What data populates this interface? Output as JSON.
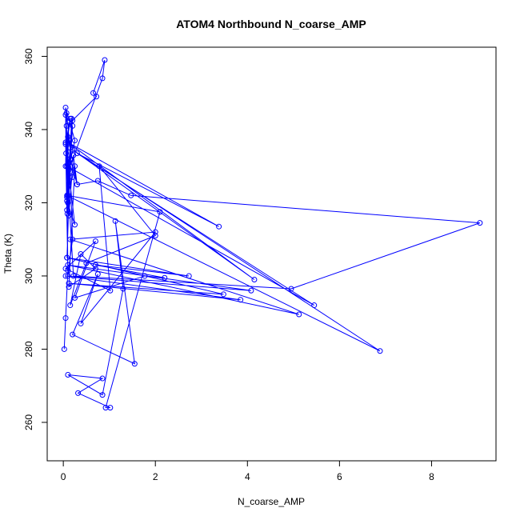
{
  "chart_data": {
    "type": "line",
    "title": "ATOM4 Northbound N_coarse_AMP",
    "xlabel": "N_coarse_AMP",
    "ylabel": "Theta (K)",
    "xlim": [
      -0.35,
      9.4
    ],
    "ylim": [
      249.5,
      362.5
    ],
    "xticks": [
      0,
      2,
      4,
      6,
      8
    ],
    "yticks": [
      260,
      280,
      300,
      320,
      340,
      360
    ],
    "grid": false,
    "legend": "none",
    "marker": "open-circle",
    "series_color": "#0000ff",
    "series": [
      {
        "x": [
          0.02,
          0.05,
          0.1,
          0.08,
          0.12,
          0.05,
          0.07,
          0.15,
          0.2,
          0.09,
          0.12,
          0.25,
          0.05,
          0.1,
          0.18,
          0.08,
          0.15,
          0.3,
          0.22,
          0.12,
          0.07,
          0.05,
          0.1,
          0.2,
          0.15,
          0.08,
          0.06,
          0.05,
          0.12,
          0.85,
          0.9,
          0.65,
          0.72,
          0.2,
          0.12,
          0.08,
          0.25,
          0.05,
          0.15,
          0.1,
          0.3,
          0.75,
          1.47,
          9.05,
          4.95,
          0.22,
          0.08,
          5.45,
          0.3,
          3.38,
          0.1,
          4.15,
          0.2,
          6.88,
          0.08,
          2.1,
          0.92,
          1.02,
          0.32,
          0.85,
          0.1,
          0.85,
          1.3,
          1.13,
          1.55,
          0.2,
          0.75,
          0.38,
          2.0,
          0.15,
          5.12,
          0.1,
          4.08,
          0.05,
          3.85,
          0.12,
          3.48,
          0.08,
          2.73,
          0.7,
          2.2,
          1.77,
          0.25,
          0.7,
          0.05,
          1.02,
          0.78,
          2.0,
          0.5,
          0.15,
          0.38,
          0.7,
          0.12,
          0.25,
          0.2,
          0.1
        ],
        "y": [
          280.0,
          288.5,
          301.5,
          321.5,
          342.0,
          330.0,
          344.5,
          335.0,
          341.0,
          317.0,
          329.5,
          337.0,
          346.0,
          320.0,
          343.0,
          305.0,
          332.0,
          325.0,
          333.0,
          316.5,
          341.0,
          336.5,
          300.0,
          310.0,
          328.5,
          318.0,
          333.5,
          344.0,
          329.0,
          354.0,
          359.0,
          350.0,
          349.0,
          342.5,
          331.0,
          320.5,
          314.0,
          336.0,
          343.0,
          338.0,
          325.0,
          326.0,
          322.0,
          314.5,
          296.5,
          300.0,
          330.0,
          292.0,
          333.5,
          313.5,
          336.5,
          299.0,
          334.5,
          279.5,
          322.0,
          317.5,
          264.0,
          264.0,
          268.0,
          272.0,
          273.0,
          267.5,
          296.5,
          315.0,
          276.0,
          284.0,
          300.5,
          287.0,
          312.0,
          310.0,
          289.5,
          303.0,
          296.0,
          300.0,
          293.5,
          298.0,
          295.0,
          305.0,
          300.0,
          303.0,
          299.5,
          300.0,
          294.0,
          309.5,
          302.0,
          296.0,
          330.0,
          311.0,
          303.5,
          292.0,
          306.0,
          302.0,
          297.0,
          330.0,
          327.0,
          322.0
        ]
      }
    ]
  }
}
